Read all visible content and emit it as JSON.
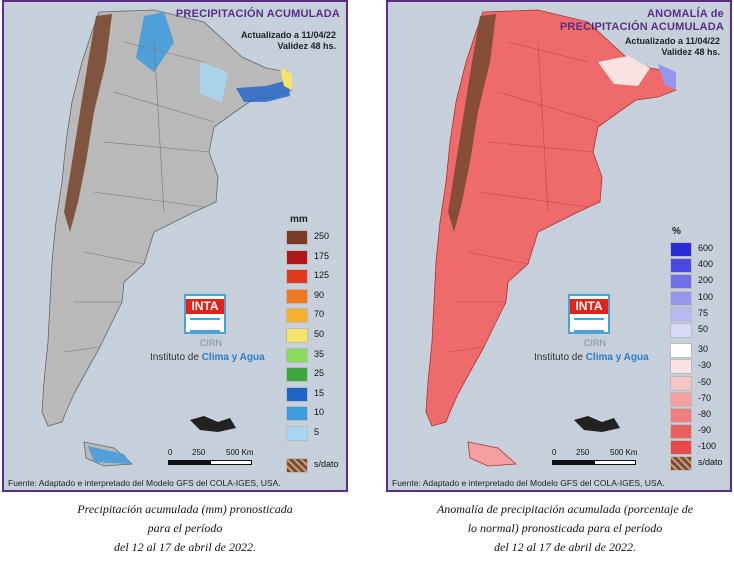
{
  "left_map": {
    "title": "PRECIPITACIÓN ACUMULADA",
    "updated": "Actualizado a 11/04/22",
    "validity": "Validez 48 hs.",
    "legend_unit": "mm",
    "legend": [
      {
        "label": "250",
        "color": "#7a3b26"
      },
      {
        "label": "175",
        "color": "#b01818"
      },
      {
        "label": "125",
        "color": "#e03a1a"
      },
      {
        "label": "90",
        "color": "#f0781e"
      },
      {
        "label": "70",
        "color": "#f6b02a"
      },
      {
        "label": "50",
        "color": "#f8e36a"
      },
      {
        "label": "35",
        "color": "#8bdb5a"
      },
      {
        "label": "25",
        "color": "#3aa83a"
      },
      {
        "label": "15",
        "color": "#1e63c8"
      },
      {
        "label": "10",
        "color": "#3c9ae0"
      },
      {
        "label": "5",
        "color": "#a6d8f4"
      }
    ],
    "nodata_label": "s/dato",
    "source": "Fuente: Adaptado e interpretado del Modelo GFS del COLA-IGES, USA."
  },
  "right_map": {
    "title_line1": "ANOMALÍA de",
    "title_line2": "PRECIPITACIÓN ACUMULADA",
    "updated": "Actualizado a 11/04/22",
    "validity": "Validez 48 hs.",
    "legend_unit": "%",
    "legend": [
      {
        "label": "600",
        "color": "#2a2ad6"
      },
      {
        "label": "400",
        "color": "#4a4ae0"
      },
      {
        "label": "200",
        "color": "#7070e6"
      },
      {
        "label": "100",
        "color": "#9696ec"
      },
      {
        "label": "75",
        "color": "#b8b8f2"
      },
      {
        "label": "50",
        "color": "#d8d8f8"
      },
      {
        "label": "30",
        "color": "#ffffff"
      },
      {
        "label": "-30",
        "color": "#fbe2e2"
      },
      {
        "label": "-50",
        "color": "#f8c4c4"
      },
      {
        "label": "-70",
        "color": "#f4a0a0"
      },
      {
        "label": "-80",
        "color": "#f07c7c"
      },
      {
        "label": "-90",
        "color": "#ec5e5e"
      },
      {
        "label": "-100",
        "color": "#e84848"
      }
    ],
    "nodata_label": "s/dato",
    "source": "Fuente: Adaptado e interpretado del Modelo GFS del COLA-IGES, USA."
  },
  "logo": {
    "inta": "INTA",
    "cirn": "CIRN",
    "institute_prefix": "Instituto de ",
    "institute_highlight": "Clima y Agua"
  },
  "scale": {
    "l0": "0",
    "l1": "250",
    "l2": "500 Km"
  },
  "captions": {
    "left": [
      "Precipitación acumulada (mm) pronosticada",
      "para el período",
      "del 12 al 17 de abril de 2022."
    ],
    "right": [
      "Anomalía de precipitación acumulada (porcentaje de",
      "lo normal) pronosticada para el período",
      "del 12 al 17 de abril de 2022."
    ]
  },
  "colors": {
    "frame": "#5b2d86",
    "land_left": "#b9b9b9",
    "land_right": "#ef6a6a",
    "nodata": "#7a4a32"
  }
}
